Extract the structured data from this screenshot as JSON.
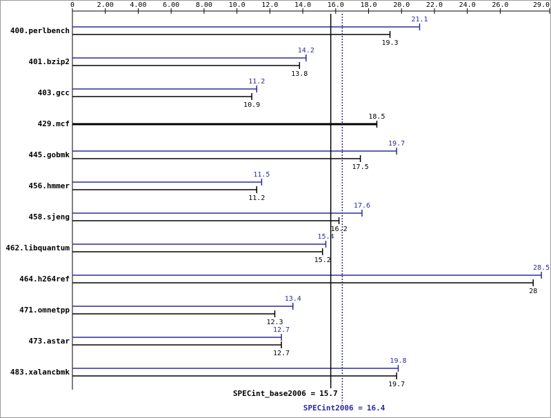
{
  "chart_data": {
    "type": "bar",
    "orientation": "horizontal",
    "categories": [
      "400.perlbench",
      "401.bzip2",
      "403.gcc",
      "429.mcf",
      "445.gobmk",
      "456.hmmer",
      "458.sjeng",
      "462.libquantum",
      "464.h264ref",
      "471.omnetpp",
      "473.astar",
      "483.xalancbmk"
    ],
    "series": [
      {
        "color": "#2a2a9c",
        "values": [
          21.1,
          14.2,
          11.2,
          null,
          19.7,
          11.5,
          17.6,
          15.4,
          28.5,
          13.4,
          12.7,
          19.8
        ]
      },
      {
        "color": "#000000",
        "values": [
          19.3,
          13.8,
          10.9,
          18.5,
          17.5,
          11.2,
          16.2,
          15.2,
          28.0,
          12.3,
          12.7,
          19.7
        ]
      }
    ],
    "xlim": [
      0,
      29
    ],
    "xticks": [
      0,
      {
        "value": 2,
        "label": "2.00"
      },
      {
        "value": 4,
        "label": "4.00"
      },
      {
        "value": 6,
        "label": "6.00"
      },
      {
        "value": 8,
        "label": "8.00"
      },
      {
        "value": 10,
        "label": "10.0"
      },
      {
        "value": 12,
        "label": "12.0"
      },
      {
        "value": 14,
        "label": "14.0"
      },
      {
        "value": 16,
        "label": "16.0"
      },
      {
        "value": 18,
        "label": "18.0"
      },
      {
        "value": 20,
        "label": "20.0"
      },
      {
        "value": 22,
        "label": "22.0"
      },
      {
        "value": 24,
        "label": "24.0"
      },
      {
        "value": 26,
        "label": "26.0"
      },
      {
        "value": 29,
        "label": "29.0"
      }
    ],
    "reference_lines": [
      {
        "label": "SPECint_base2006 =",
        "value": 15.7,
        "color": "#000000",
        "style": "solid"
      },
      {
        "label": "SPECint2006 =",
        "value": 16.4,
        "color": "#2a2a9c",
        "style": "dotted"
      }
    ]
  }
}
